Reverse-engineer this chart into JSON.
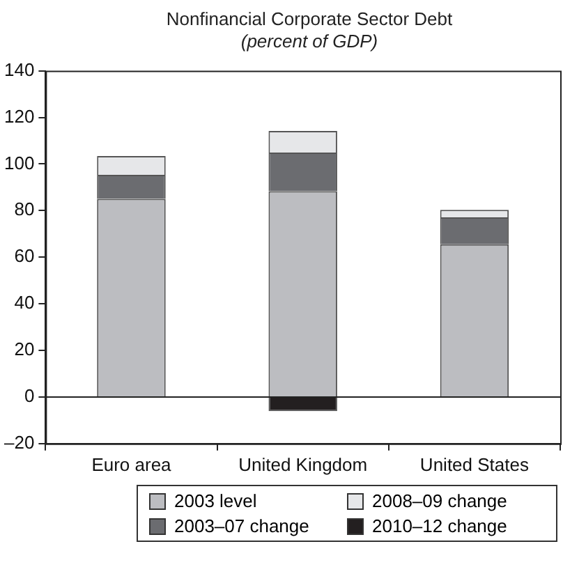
{
  "chart_data": {
    "type": "bar",
    "title": "Nonfinancial Corporate Sector Debt",
    "subtitle": "(percent of GDP)",
    "categories": [
      "Euro area",
      "United Kingdom",
      "United States"
    ],
    "stacked": true,
    "series": [
      {
        "name": "2003 level",
        "color": "#bcbdc1",
        "values": [
          85,
          88.3,
          65.5
        ]
      },
      {
        "name": "2003–07 change",
        "color": "#6b6c70",
        "values": [
          10.3,
          16.6,
          11.6
        ]
      },
      {
        "name": "2008–09 change",
        "color": "#e6e7e9",
        "values": [
          8.1,
          9.3,
          3.2
        ]
      },
      {
        "name": "2010–12 change",
        "color": "#231f20",
        "values": [
          null,
          -6.1,
          null
        ]
      }
    ],
    "ylim": [
      -20,
      140
    ],
    "yticks": [
      {
        "value": -20,
        "label": "–20"
      },
      0,
      20,
      40,
      60,
      80,
      100,
      120,
      140
    ],
    "ref_lines": [
      {
        "axis": "y",
        "value": 0,
        "color": "#222222"
      }
    ],
    "grid": false,
    "legend": "bottom"
  }
}
